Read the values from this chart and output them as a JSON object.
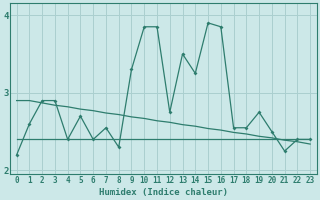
{
  "x": [
    0,
    1,
    2,
    3,
    4,
    5,
    6,
    7,
    8,
    9,
    10,
    11,
    12,
    13,
    14,
    15,
    16,
    17,
    18,
    19,
    20,
    21,
    22,
    23
  ],
  "line_main": [
    2.2,
    2.6,
    2.9,
    2.9,
    2.4,
    2.7,
    2.4,
    2.55,
    2.3,
    3.3,
    3.85,
    3.85,
    2.75,
    3.5,
    3.25,
    3.9,
    3.85,
    2.55,
    2.55,
    2.75,
    2.5,
    2.25,
    2.4,
    2.4
  ],
  "line_flat": [
    2.4,
    2.4,
    2.4,
    2.4,
    2.4,
    2.4,
    2.4,
    2.4,
    2.4,
    2.4,
    2.4,
    2.4,
    2.4,
    2.4,
    2.4,
    2.4,
    2.4,
    2.4,
    2.4,
    2.4,
    2.4,
    2.4,
    2.4,
    2.4
  ],
  "line_diag": [
    2.9,
    2.9,
    2.87,
    2.84,
    2.82,
    2.79,
    2.77,
    2.74,
    2.72,
    2.69,
    2.67,
    2.64,
    2.62,
    2.59,
    2.57,
    2.54,
    2.52,
    2.49,
    2.47,
    2.44,
    2.42,
    2.39,
    2.37,
    2.34
  ],
  "color": "#2e7d6e",
  "bg_color": "#cce8e8",
  "grid_color": "#aacfcf",
  "xlabel": "Humidex (Indice chaleur)",
  "ylim": [
    1.95,
    4.15
  ],
  "xlim": [
    -0.5,
    23.5
  ],
  "yticks": [
    2,
    3,
    4
  ],
  "xticks": [
    0,
    1,
    2,
    3,
    4,
    5,
    6,
    7,
    8,
    9,
    10,
    11,
    12,
    13,
    14,
    15,
    16,
    17,
    18,
    19,
    20,
    21,
    22,
    23
  ]
}
